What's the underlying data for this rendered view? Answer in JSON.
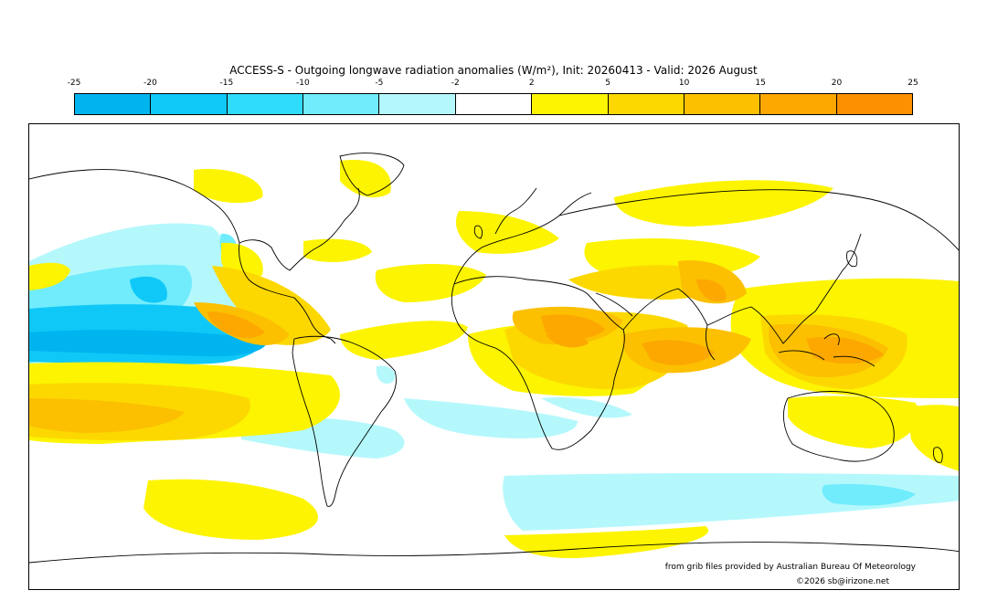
{
  "title": "ACCESS-S - Outgoing longwave radiation anomalies (W/m²), Init: 20260413 - Valid: 2026 August",
  "colorbar": {
    "tick_labels": [
      "-25",
      "-20",
      "-15",
      "-10",
      "-5",
      "-2",
      "2",
      "5",
      "10",
      "15",
      "20",
      "25"
    ],
    "colors": [
      "#00b4f0",
      "#10c8f8",
      "#30dcfc",
      "#70ecfc",
      "#b4f8fc",
      "#ffffff",
      "#fcf400",
      "#fcd800",
      "#fcc000",
      "#fca800",
      "#fc9000"
    ]
  },
  "map": {
    "projection": "equirectangular",
    "colors": {
      "neg_25_20": "#00b4f0",
      "neg_20_15": "#10c8f8",
      "neg_10_5": "#70ecfc",
      "neg_5_2": "#b4f8fc",
      "pos_2_5": "#fcf400",
      "pos_5_10": "#fcd800",
      "pos_10_15": "#fcc000",
      "pos_15_20": "#fca800"
    }
  },
  "footer": {
    "credit": "from grib files provided by Australian Bureau Of Meteorology",
    "copyright": "©2026 sb@irizone.net"
  }
}
